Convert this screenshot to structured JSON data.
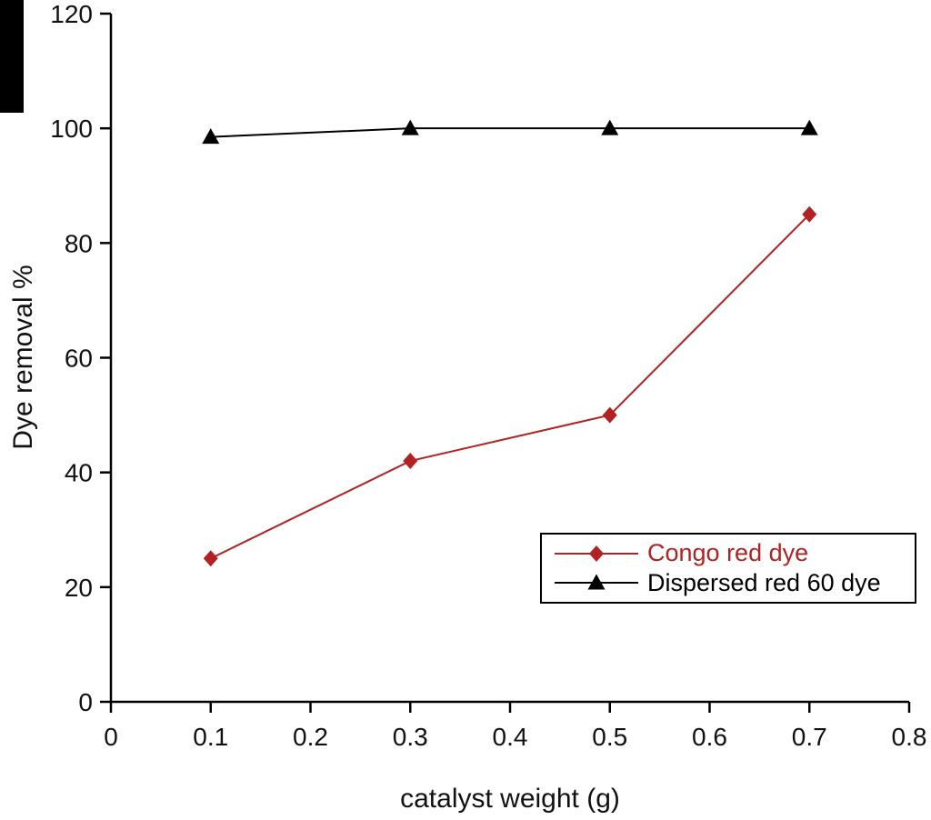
{
  "chart_data": {
    "type": "line",
    "x": [
      0.1,
      0.3,
      0.5,
      0.7
    ],
    "series": [
      {
        "name": "Congo red dye",
        "values": [
          25,
          42,
          50,
          85
        ],
        "color": "#b22222",
        "marker": "diamond"
      },
      {
        "name": "Dispersed red 60 dye",
        "values": [
          98.5,
          100,
          100,
          100
        ],
        "color": "#000000",
        "marker": "triangle"
      }
    ],
    "xlabel": "catalyst weight (g)",
    "ylabel": "Dye removal %",
    "xlim": [
      0,
      0.8
    ],
    "ylim": [
      0,
      120
    ],
    "xticks": [
      "0",
      "0.1",
      "0.2",
      "0.3",
      "0.4",
      "0.5",
      "0.6",
      "0.7",
      "0.8"
    ],
    "yticks": [
      "0",
      "20",
      "40",
      "60",
      "80",
      "100",
      "120"
    ],
    "grid": false,
    "legend_position": "inside lower right"
  }
}
